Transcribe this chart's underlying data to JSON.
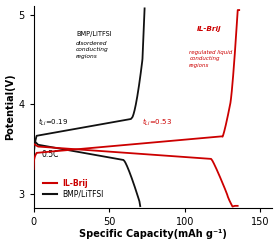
{
  "xlabel": "Specific Capacity(mAh g⁻¹)",
  "ylabel": "Potential(V)",
  "xlim": [
    0,
    158
  ],
  "ylim": [
    2.85,
    5.1
  ],
  "yticks": [
    3,
    4,
    5
  ],
  "xticks": [
    0,
    50,
    100,
    150
  ],
  "line_il_color": "#cc0000",
  "line_bmp_color": "#111111",
  "label_il": "IL-Brij",
  "label_bmp": "BMP/LiTFSI"
}
